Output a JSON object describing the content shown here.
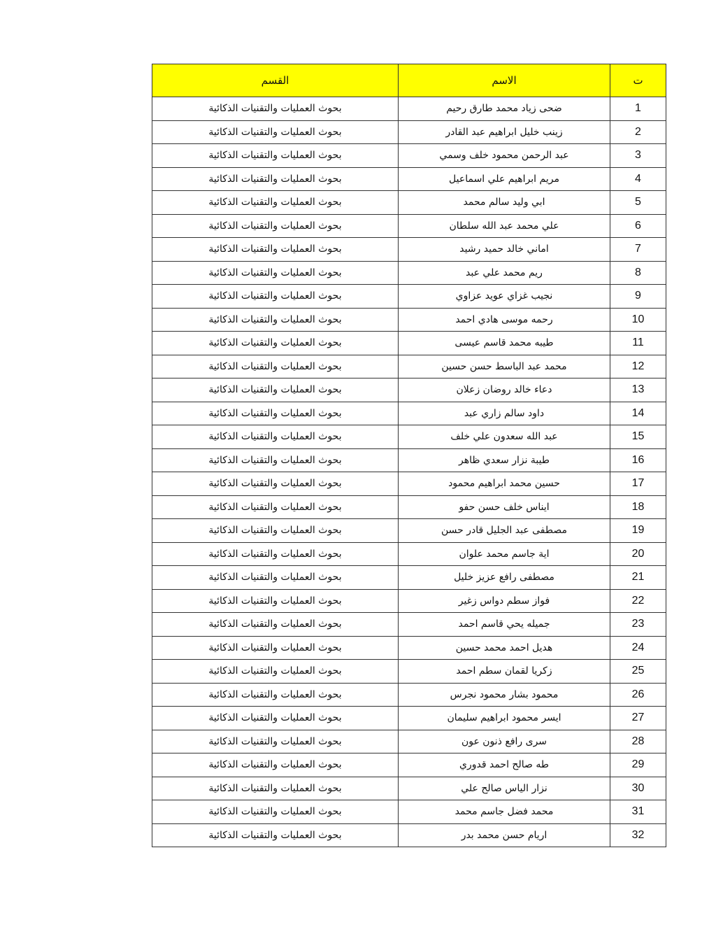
{
  "table": {
    "headers": {
      "number": "ت",
      "name": "الاسم",
      "department": "القسم"
    },
    "header_color": "#FFFF00",
    "rows": [
      {
        "number": "1",
        "name": "ضحى زياد محمد طارق رحيم",
        "department": "بحوث العمليات والتقنيات الذكائية"
      },
      {
        "number": "2",
        "name": "زينب خليل ابراهيم عبد القادر",
        "department": "بحوث العمليات والتقنيات الذكائية"
      },
      {
        "number": "3",
        "name": "عبد الرحمن محمود خلف وسمي",
        "department": "بحوث العمليات والتقنيات الذكائية"
      },
      {
        "number": "4",
        "name": "مريم ابراهيم علي اسماعيل",
        "department": "بحوث العمليات والتقنيات الذكائية"
      },
      {
        "number": "5",
        "name": "ابي وليد سالم محمد",
        "department": "بحوث العمليات والتقنيات الذكائية"
      },
      {
        "number": "6",
        "name": "علي محمد عبد الله سلطان",
        "department": "بحوث العمليات والتقنيات الذكائية"
      },
      {
        "number": "7",
        "name": "اماني خالد حميد رشيد",
        "department": "بحوث العمليات والتقنيات الذكائية"
      },
      {
        "number": "8",
        "name": "ريم محمد علي عبد",
        "department": "بحوث العمليات والتقنيات الذكائية"
      },
      {
        "number": "9",
        "name": "نجيب غزاي عويد عزاوي",
        "department": "بحوث العمليات والتقنيات الذكائية"
      },
      {
        "number": "10",
        "name": "رحمه موسى هادي احمد",
        "department": "بحوث العمليات والتقنيات الذكائية"
      },
      {
        "number": "11",
        "name": "طيبه محمد قاسم عيسى",
        "department": "بحوث العمليات والتقنيات الذكائية"
      },
      {
        "number": "12",
        "name": "محمد عبد الباسط حسن حسين",
        "department": "بحوث العمليات والتقنيات الذكائية"
      },
      {
        "number": "13",
        "name": "دعاء خالد روضان زعلان",
        "department": "بحوث العمليات والتقنيات الذكائية"
      },
      {
        "number": "14",
        "name": "داود سالم زاري عبد",
        "department": "بحوث العمليات والتقنيات الذكائية"
      },
      {
        "number": "15",
        "name": "عبد الله سعدون علي خلف",
        "department": "بحوث العمليات والتقنيات الذكائية"
      },
      {
        "number": "16",
        "name": "طيبة نزار سعدي ظاهر",
        "department": "بحوث العمليات والتقنيات الذكائية"
      },
      {
        "number": "17",
        "name": "حسين محمد ابراهيم محمود",
        "department": "بحوث العمليات والتقنيات الذكائية"
      },
      {
        "number": "18",
        "name": "ايناس خلف حسن حفو",
        "department": "بحوث العمليات والتقنيات الذكائية"
      },
      {
        "number": "19",
        "name": "مصطفى عبد الجليل قادر حسن",
        "department": "بحوث العمليات والتقنيات الذكائية"
      },
      {
        "number": "20",
        "name": "اية جاسم محمد علوان",
        "department": "بحوث العمليات والتقنيات الذكائية"
      },
      {
        "number": "21",
        "name": "مصطفى رافع عزيز خليل",
        "department": "بحوث العمليات والتقنيات الذكائية"
      },
      {
        "number": "22",
        "name": "فواز سطم دواس زغير",
        "department": "بحوث العمليات والتقنيات الذكائية"
      },
      {
        "number": "23",
        "name": "جميله يحي قاسم احمد",
        "department": "بحوث العمليات والتقنيات الذكائية"
      },
      {
        "number": "24",
        "name": "هديل احمد محمد حسين",
        "department": "بحوث العمليات والتقنيات الذكائية"
      },
      {
        "number": "25",
        "name": "زكريا لقمان سطم احمد",
        "department": "بحوث العمليات والتقنيات الذكائية"
      },
      {
        "number": "26",
        "name": "محمود بشار محمود نجرس",
        "department": "بحوث العمليات والتقنيات الذكائية"
      },
      {
        "number": "27",
        "name": "ايسر محمود ابراهيم سليمان",
        "department": "بحوث العمليات والتقنيات الذكائية"
      },
      {
        "number": "28",
        "name": "سرى رافع ذنون عون",
        "department": "بحوث العمليات والتقنيات الذكائية"
      },
      {
        "number": "29",
        "name": "طه صالح احمد قدوري",
        "department": "بحوث العمليات والتقنيات الذكائية"
      },
      {
        "number": "30",
        "name": "نزار الياس صالح علي",
        "department": "بحوث العمليات والتقنيات الذكائية"
      },
      {
        "number": "31",
        "name": "محمد فضل جاسم محمد",
        "department": "بحوث العمليات والتقنيات الذكائية"
      },
      {
        "number": "32",
        "name": "اريام حسن محمد بدر",
        "department": "بحوث العمليات والتقنيات الذكائية"
      }
    ]
  }
}
